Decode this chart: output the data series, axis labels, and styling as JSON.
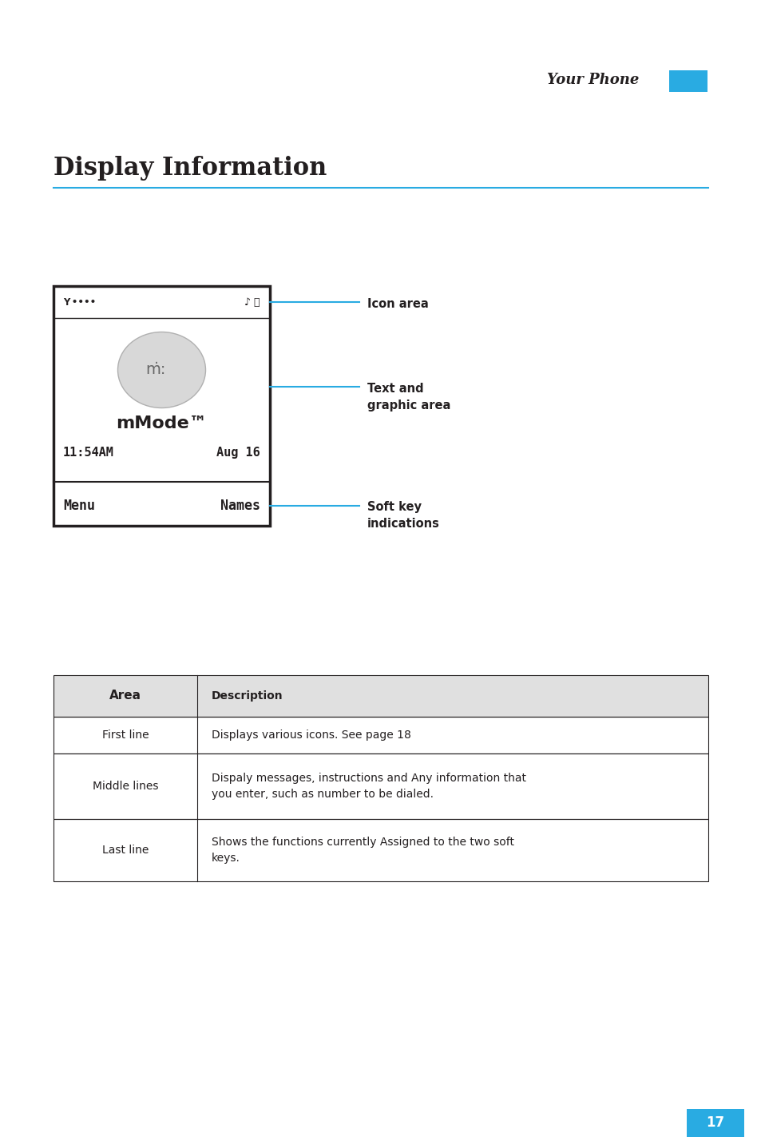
{
  "bg_color": "#ffffff",
  "header_text": "Your Phone",
  "header_tab_color": "#29abe2",
  "title": "Display Information",
  "title_color": "#231f20",
  "title_underline_color": "#29abe2",
  "footer_page": "17",
  "footer_bg": "#29abe2",
  "footer_text_color": "#ffffff",
  "table_rows": [
    {
      "area": "Area",
      "description": "Description",
      "is_header": true
    },
    {
      "area": "First line",
      "description": "Displays various icons. See page 18",
      "is_header": false
    },
    {
      "area": "Middle lines",
      "description": "Dispaly messages, instructions and Any information that\nyou enter, such as number to be dialed.",
      "is_header": false
    },
    {
      "area": "Last line",
      "description": "Shows the functions currently Assigned to the two soft\nkeys.",
      "is_header": false
    }
  ]
}
